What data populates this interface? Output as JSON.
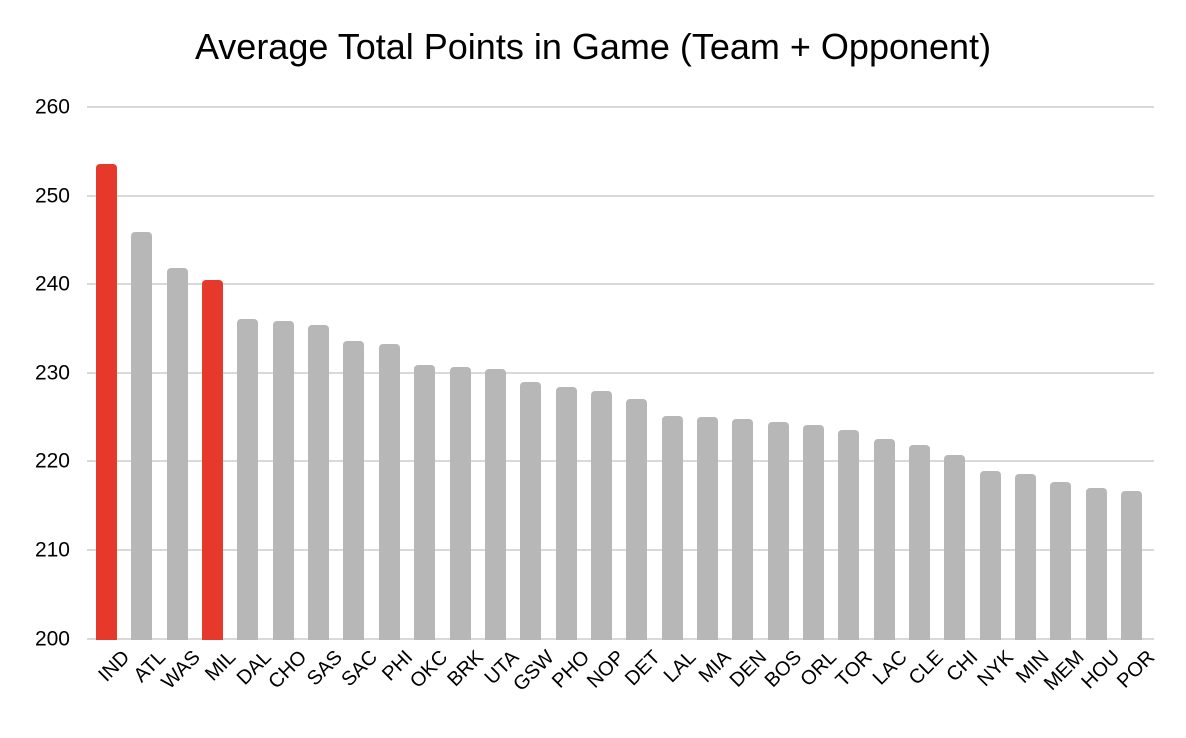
{
  "title": "Average Total Points in Game (Team + Opponent)",
  "colors": {
    "bar_default": "#b7b7b7",
    "bar_highlight": "#e6382b",
    "gridline": "#d9d9d9",
    "text": "#000000",
    "background": "#ffffff"
  },
  "chart_data": {
    "type": "bar",
    "title": "Average Total Points in Game (Team + Opponent)",
    "xlabel": "",
    "ylabel": "",
    "categories": [
      "IND",
      "ATL",
      "WAS",
      "MIL",
      "DAL",
      "CHO",
      "SAS",
      "SAC",
      "PHI",
      "OKC",
      "BRK",
      "UTA",
      "GSW",
      "PHO",
      "NOP",
      "DET",
      "LAL",
      "MIA",
      "DEN",
      "BOS",
      "ORL",
      "TOR",
      "LAC",
      "CLE",
      "CHI",
      "NYK",
      "MIN",
      "MEM",
      "HOU",
      "POR"
    ],
    "values": [
      253.6,
      245.9,
      241.8,
      240.5,
      236.1,
      235.9,
      235.4,
      233.6,
      233.2,
      230.9,
      230.6,
      230.4,
      229.0,
      228.4,
      228.0,
      227.0,
      225.1,
      225.0,
      224.8,
      224.5,
      224.1,
      223.6,
      222.5,
      221.8,
      220.7,
      218.9,
      218.6,
      217.7,
      217.0,
      216.7
    ],
    "highlighted_categories": [
      "IND",
      "MIL"
    ],
    "ylim": [
      200,
      260
    ],
    "yticks": [
      200,
      210,
      220,
      230,
      240,
      250,
      260
    ],
    "grid": true,
    "legend": "none"
  }
}
